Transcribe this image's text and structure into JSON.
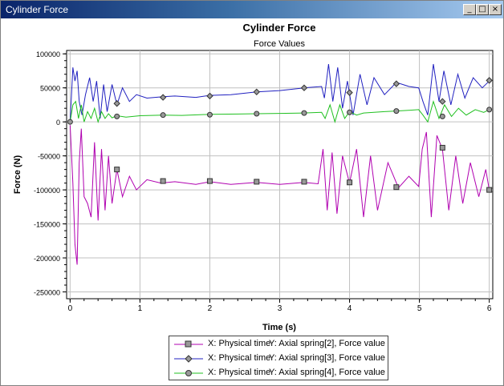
{
  "window": {
    "title": "Cylinder Force",
    "controls": {
      "minimize": "_",
      "maximize": "□",
      "close": "×"
    }
  },
  "chart_data": {
    "type": "line",
    "title": "Cylinder Force",
    "subtitle": "Force Values",
    "xlabel": "Time (s)",
    "ylabel": "Force (N)",
    "xlim": [
      -0.05,
      6.05
    ],
    "ylim": [
      -260000,
      105000
    ],
    "xticks": [
      0,
      1,
      2,
      3,
      4,
      5,
      6
    ],
    "yticks": [
      100000,
      50000,
      0,
      -50000,
      -100000,
      -150000,
      -200000,
      -250000
    ],
    "grid": true,
    "legend_position": "bottom",
    "series": [
      {
        "name": "Axial spring[2], Force value",
        "color": "#b000b0",
        "marker": "square",
        "x": [
          0,
          0.04,
          0.07,
          0.1,
          0.13,
          0.16,
          0.2,
          0.25,
          0.3,
          0.35,
          0.4,
          0.45,
          0.5,
          0.55,
          0.6,
          0.67,
          0.75,
          0.85,
          0.95,
          1.1,
          1.3,
          1.5,
          1.8,
          2.0,
          2.3,
          2.67,
          3.0,
          3.35,
          3.55,
          3.62,
          3.68,
          3.75,
          3.82,
          3.9,
          4.0,
          4.1,
          4.2,
          4.3,
          4.4,
          4.55,
          4.7,
          4.85,
          4.99,
          5.04,
          5.1,
          5.17,
          5.25,
          5.33,
          5.42,
          5.52,
          5.62,
          5.73,
          5.85,
          5.95,
          6.0
        ],
        "y": [
          -5000,
          -90000,
          -180000,
          -210000,
          -60000,
          -10000,
          -110000,
          -120000,
          -140000,
          -30000,
          -145000,
          -40000,
          -130000,
          -50000,
          -120000,
          -70000,
          -110000,
          -80000,
          -100000,
          -85000,
          -90000,
          -88000,
          -92000,
          -88000,
          -92000,
          -89000,
          -92000,
          -89000,
          -91000,
          -40000,
          -130000,
          -45000,
          -135000,
          -50000,
          -90000,
          -40000,
          -140000,
          -50000,
          -130000,
          -60000,
          -97000,
          -80000,
          -95000,
          -40000,
          -15000,
          -140000,
          -20000,
          -40000,
          -130000,
          -50000,
          -120000,
          -60000,
          -110000,
          -70000,
          -100000
        ],
        "markers_x": [
          0.67,
          1.33,
          2.0,
          2.67,
          3.35,
          4.0,
          4.67,
          5.33,
          6.0
        ],
        "markers_y": [
          -70000,
          -87000,
          -87000,
          -88000,
          -88000,
          -89000,
          -96000,
          -38000,
          -100000
        ]
      },
      {
        "name": "Axial spring[3], Force value",
        "color": "#2020c0",
        "marker": "diamond",
        "x": [
          0,
          0.04,
          0.07,
          0.1,
          0.13,
          0.17,
          0.22,
          0.28,
          0.33,
          0.38,
          0.43,
          0.48,
          0.53,
          0.6,
          0.67,
          0.75,
          0.85,
          0.95,
          1.1,
          1.33,
          1.5,
          1.8,
          2.0,
          2.3,
          2.67,
          3.0,
          3.35,
          3.6,
          3.64,
          3.7,
          3.76,
          3.83,
          3.9,
          3.97,
          4.05,
          4.15,
          4.25,
          4.35,
          4.5,
          4.67,
          4.85,
          4.99,
          5.05,
          5.12,
          5.2,
          5.28,
          5.35,
          5.45,
          5.55,
          5.65,
          5.77,
          5.9,
          6.0
        ],
        "y": [
          0,
          80000,
          60000,
          75000,
          30000,
          10000,
          40000,
          65000,
          30000,
          60000,
          5000,
          55000,
          15000,
          55000,
          25000,
          50000,
          30000,
          40000,
          35000,
          37000,
          38000,
          36000,
          39000,
          40000,
          44000,
          46000,
          50000,
          52000,
          35000,
          85000,
          30000,
          80000,
          20000,
          60000,
          10000,
          70000,
          25000,
          65000,
          40000,
          58000,
          52000,
          50000,
          30000,
          10000,
          85000,
          30000,
          75000,
          25000,
          70000,
          35000,
          65000,
          50000,
          60000
        ],
        "markers_x": [
          0.67,
          1.33,
          2.0,
          2.67,
          3.35,
          4.0,
          4.67,
          5.33,
          6.0
        ],
        "markers_y": [
          27000,
          36000,
          38000,
          44000,
          50000,
          43000,
          56000,
          30000,
          61000
        ]
      },
      {
        "name": "Axial spring[4], Force value",
        "color": "#20c020",
        "marker": "circle",
        "x": [
          0,
          0.04,
          0.08,
          0.12,
          0.16,
          0.2,
          0.25,
          0.3,
          0.35,
          0.4,
          0.45,
          0.5,
          0.55,
          0.6,
          0.67,
          0.8,
          1.0,
          1.33,
          1.6,
          2.0,
          2.4,
          2.67,
          3.0,
          3.35,
          3.6,
          3.65,
          3.72,
          3.79,
          3.86,
          3.93,
          4.0,
          4.1,
          4.2,
          4.35,
          4.5,
          4.67,
          4.85,
          4.99,
          5.05,
          5.12,
          5.2,
          5.28,
          5.36,
          5.46,
          5.56,
          5.67,
          5.8,
          5.92,
          6.0
        ],
        "y": [
          0,
          25000,
          30000,
          5000,
          25000,
          0,
          15000,
          5000,
          20000,
          0,
          15000,
          5000,
          12000,
          6000,
          9000,
          7000,
          9000,
          10000,
          9500,
          11000,
          11500,
          12000,
          12500,
          13000,
          14000,
          5000,
          25000,
          0,
          25000,
          5000,
          15000,
          10000,
          13000,
          14000,
          15000,
          16000,
          17000,
          18000,
          10000,
          0,
          30000,
          5000,
          25000,
          8000,
          20000,
          10000,
          18000,
          14000,
          18000
        ],
        "markers_x": [
          0,
          0.67,
          1.33,
          2.0,
          2.67,
          3.35,
          4.0,
          4.67,
          5.33,
          6.0
        ],
        "markers_y": [
          0,
          8000,
          10000,
          10500,
          12000,
          13000,
          14000,
          16000,
          8000,
          18000
        ]
      }
    ]
  },
  "legend": {
    "items": [
      {
        "x_label": "X: Physical time",
        "y_label": "Y: Axial spring[2], Force value"
      },
      {
        "x_label": "X: Physical time",
        "y_label": "Y: Axial spring[3], Force value"
      },
      {
        "x_label": "X: Physical time",
        "y_label": "Y: Axial spring[4], Force value"
      }
    ]
  }
}
